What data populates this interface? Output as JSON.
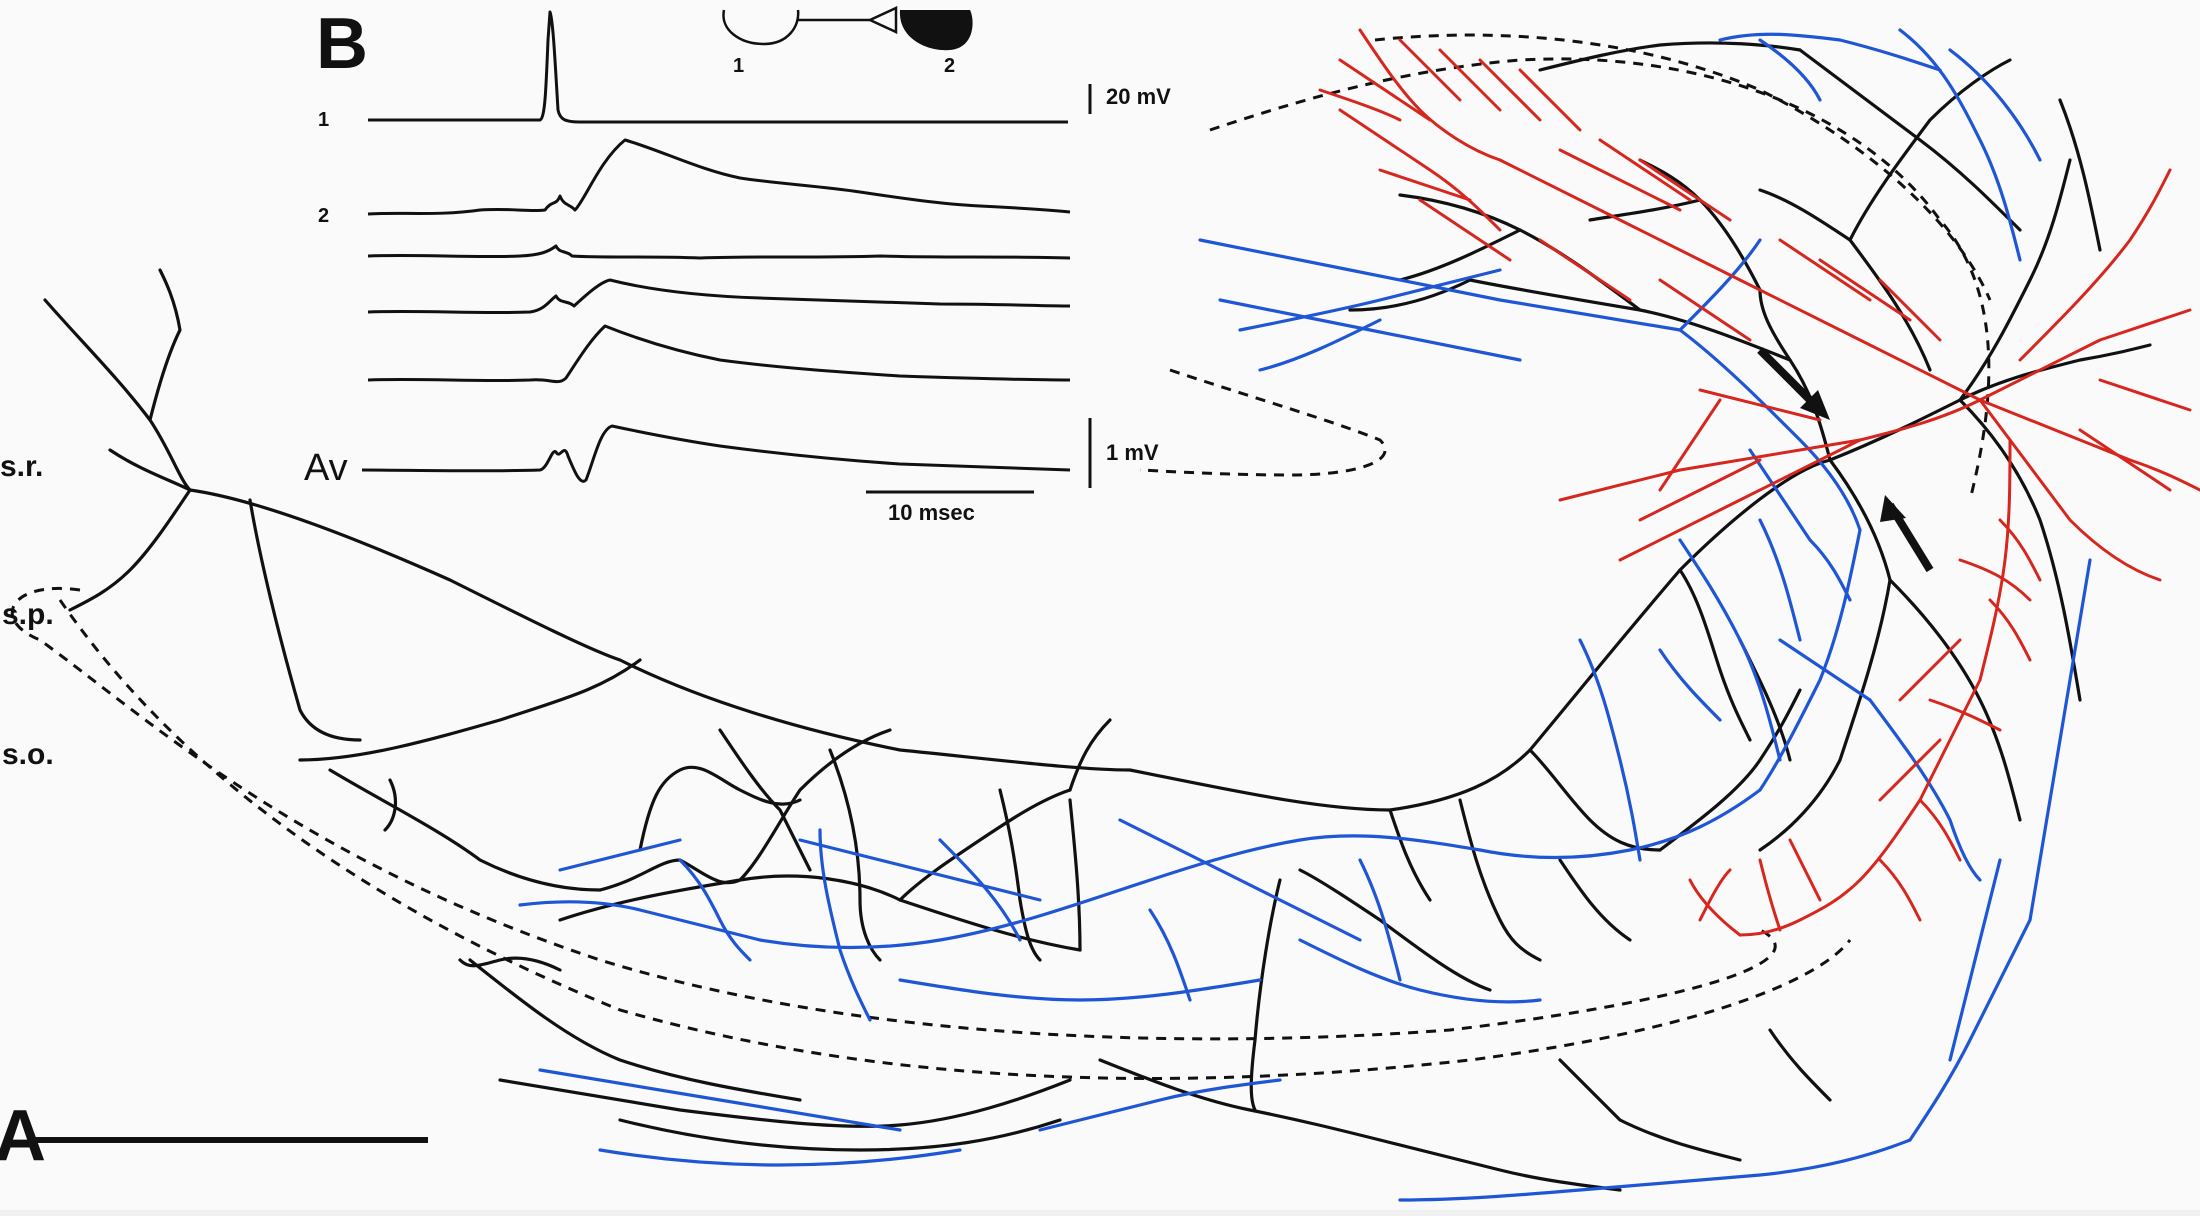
{
  "figure": {
    "panel_a_label": "A",
    "panel_b_label": "B",
    "layers": {
      "sr": "s.r.",
      "sp": "s.p.",
      "so": "s.o."
    },
    "inset": {
      "cell_1_label": "1",
      "cell_2_label": "2"
    },
    "traces": {
      "row_1_label": "1",
      "row_2_label": "2",
      "average_label": "Av"
    },
    "scale_bars": {
      "voltage_top": "20 mV",
      "voltage_bottom": "1 mV",
      "time": "10 msec"
    },
    "colors": {
      "black_axon": "#111111",
      "blue_axon": "#1f56d6",
      "red_dendrites": "#d6261e",
      "background": "#fafafa"
    }
  }
}
